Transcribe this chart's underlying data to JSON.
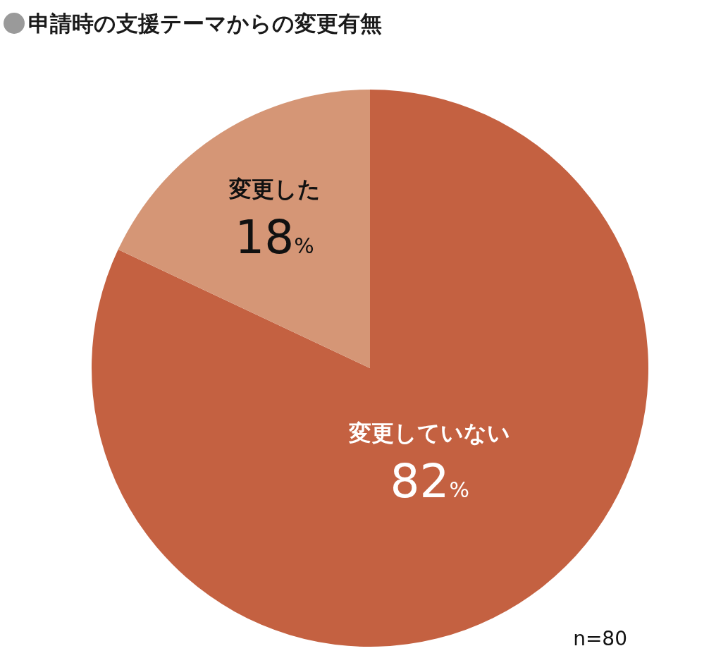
{
  "chart_data": {
    "type": "pie",
    "title": "申請時の支援テーマからの変更有無",
    "categories": [
      "変更していない",
      "変更した"
    ],
    "values": [
      82,
      18
    ],
    "colors": [
      "#c46141",
      "#d59676"
    ],
    "value_labels": [
      "82%",
      "18%"
    ],
    "annotations": [
      "n=80"
    ]
  }
}
